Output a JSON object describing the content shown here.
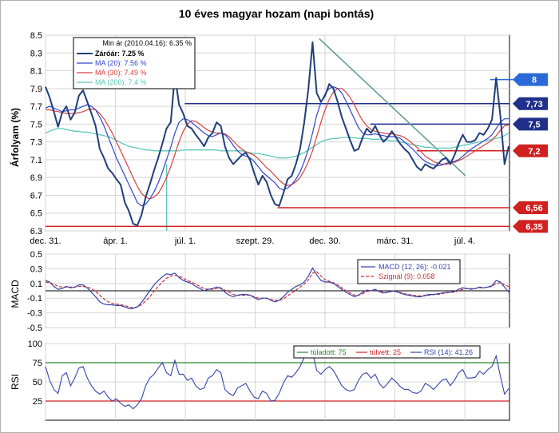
{
  "chart_data": [
    {
      "type": "line",
      "title": "10 éves magyar hozam (napi bontás)",
      "ylabel": "Árfolyam (%)",
      "ylim": [
        6.3,
        8.5
      ],
      "yticks": [
        "8.5",
        "8.3",
        "8.1",
        "7.9",
        "7.7",
        "7.5",
        "7.3",
        "7.1",
        "6.9",
        "6.7",
        "6.5",
        "6.3"
      ],
      "xticks": [
        "dec. 31.",
        "ápr. 1.",
        "júl. 1.",
        "szept. 29.",
        "dec. 30.",
        "márc. 31.",
        "júl. 4."
      ],
      "grid": true,
      "legend": {
        "position": "top-left",
        "header": "Min ár (2010.04.16): 6.35 %",
        "entries": [
          "Záróár: 7.25 %",
          "MA (20): 7.56 %",
          "MA (30): 7.49 %",
          "MA (200): 7.4 %"
        ]
      },
      "colors": {
        "close": "#1f3f7a",
        "ma20": "#3344cc",
        "ma30": "#d84040",
        "ma200": "#5cc8b8",
        "level_blue": "#1f2f8a",
        "level_red": "#d02020",
        "trend": "#5a9a90"
      },
      "series": [
        {
          "name": "Záróár",
          "values": [
            7.92,
            7.8,
            7.64,
            7.47,
            7.63,
            7.7,
            7.55,
            7.63,
            7.82,
            7.88,
            7.75,
            7.62,
            7.48,
            7.22,
            7.12,
            7.0,
            6.95,
            6.88,
            6.82,
            6.62,
            6.52,
            6.38,
            6.36,
            6.48,
            6.68,
            6.82,
            6.98,
            7.12,
            7.28,
            7.45,
            7.52,
            8.05,
            7.72,
            7.62,
            7.48,
            7.45,
            7.38,
            7.32,
            7.25,
            7.35,
            7.4,
            7.52,
            7.48,
            7.25,
            7.12,
            7.05,
            7.1,
            7.15,
            7.18,
            7.1,
            6.95,
            6.82,
            6.92,
            6.85,
            6.7,
            6.6,
            6.58,
            6.72,
            6.88,
            6.92,
            7.05,
            7.22,
            7.52,
            7.9,
            8.42,
            7.85,
            7.75,
            7.82,
            7.95,
            7.9,
            7.75,
            7.58,
            7.45,
            7.32,
            7.2,
            7.22,
            7.35,
            7.45,
            7.4,
            7.48,
            7.38,
            7.3,
            7.35,
            7.42,
            7.35,
            7.28,
            7.22,
            7.18,
            7.1,
            7.02,
            6.98,
            7.05,
            7.02,
            7.0,
            7.05,
            7.1,
            7.12,
            7.05,
            7.15,
            7.28,
            7.38,
            7.3,
            7.3,
            7.32,
            7.4,
            7.38,
            7.45,
            7.55,
            8.02,
            7.6,
            7.05,
            7.25
          ]
        },
        {
          "name": "MA (20)",
          "values": [
            7.68,
            7.7,
            7.68,
            7.66,
            7.64,
            7.65,
            7.66,
            7.66,
            7.68,
            7.7,
            7.72,
            7.7,
            7.66,
            7.58,
            7.48,
            7.36,
            7.24,
            7.12,
            7.02,
            6.92,
            6.82,
            6.72,
            6.62,
            6.58,
            6.6,
            6.66,
            6.74,
            6.84,
            6.96,
            7.1,
            7.24,
            7.4,
            7.52,
            7.56,
            7.55,
            7.52,
            7.48,
            7.44,
            7.4,
            7.37,
            7.36,
            7.38,
            7.4,
            7.38,
            7.33,
            7.26,
            7.2,
            7.16,
            7.14,
            7.12,
            7.08,
            7.02,
            6.96,
            6.92,
            6.88,
            6.84,
            6.78,
            6.76,
            6.78,
            6.82,
            6.88,
            6.96,
            7.08,
            7.22,
            7.4,
            7.6,
            7.74,
            7.84,
            7.9,
            7.92,
            7.9,
            7.85,
            7.76,
            7.66,
            7.56,
            7.46,
            7.4,
            7.38,
            7.38,
            7.39,
            7.38,
            7.37,
            7.36,
            7.36,
            7.36,
            7.34,
            7.3,
            7.26,
            7.22,
            7.17,
            7.12,
            7.08,
            7.06,
            7.04,
            7.03,
            7.04,
            7.06,
            7.07,
            7.08,
            7.1,
            7.14,
            7.18,
            7.22,
            7.25,
            7.28,
            7.31,
            7.34,
            7.38,
            7.45,
            7.52,
            7.56,
            7.56
          ]
        },
        {
          "name": "MA (30)",
          "values": [
            7.66,
            7.66,
            7.65,
            7.64,
            7.63,
            7.62,
            7.62,
            7.62,
            7.63,
            7.64,
            7.66,
            7.67,
            7.66,
            7.62,
            7.56,
            7.48,
            7.4,
            7.3,
            7.2,
            7.1,
            7.0,
            6.9,
            6.8,
            6.72,
            6.68,
            6.66,
            6.68,
            6.72,
            6.8,
            6.9,
            7.02,
            7.16,
            7.3,
            7.42,
            7.5,
            7.54,
            7.53,
            7.5,
            7.46,
            7.43,
            7.41,
            7.4,
            7.4,
            7.39,
            7.36,
            7.31,
            7.26,
            7.22,
            7.19,
            7.17,
            7.15,
            7.11,
            7.06,
            7.01,
            6.97,
            6.92,
            6.87,
            6.83,
            6.81,
            6.82,
            6.85,
            6.9,
            6.98,
            7.08,
            7.2,
            7.36,
            7.52,
            7.66,
            7.78,
            7.86,
            7.9,
            7.9,
            7.86,
            7.8,
            7.72,
            7.62,
            7.54,
            7.48,
            7.44,
            7.42,
            7.41,
            7.4,
            7.39,
            7.39,
            7.38,
            7.37,
            7.35,
            7.32,
            7.28,
            7.24,
            7.19,
            7.14,
            7.11,
            7.08,
            7.06,
            7.05,
            7.05,
            7.06,
            7.07,
            7.09,
            7.11,
            7.14,
            7.17,
            7.2,
            7.23,
            7.26,
            7.29,
            7.32,
            7.37,
            7.43,
            7.48,
            7.49
          ]
        },
        {
          "name": "MA (200)",
          "values": [
            7.4,
            7.42,
            7.44,
            7.45,
            7.45,
            7.44,
            7.43,
            7.42,
            7.42,
            7.41,
            7.41,
            7.4,
            7.39,
            7.38,
            7.37,
            7.36,
            7.34,
            7.32,
            7.29,
            7.27,
            7.25,
            7.24,
            7.23,
            7.22,
            7.21,
            7.21,
            7.2,
            7.2,
            7.2,
            7.2,
            7.2,
            7.2,
            7.2,
            7.21,
            7.21,
            7.21,
            7.21,
            7.21,
            7.21,
            7.21,
            7.21,
            7.21,
            7.2,
            7.2,
            7.2,
            7.2,
            7.2,
            7.2,
            7.19,
            7.18,
            7.17,
            7.17,
            7.16,
            7.15,
            7.14,
            7.13,
            7.12,
            7.12,
            7.12,
            7.13,
            7.14,
            7.16,
            7.18,
            7.21,
            7.24,
            7.27,
            7.3,
            7.32,
            7.33,
            7.34,
            7.34,
            7.35,
            7.35,
            7.35,
            7.35,
            7.34,
            7.34,
            7.34,
            7.33,
            7.33,
            7.33,
            7.32,
            7.32,
            7.31,
            7.31,
            7.3,
            7.29,
            7.28,
            7.27,
            7.26,
            7.25,
            7.24,
            7.24,
            7.23,
            7.23,
            7.23,
            7.23,
            7.23,
            7.24,
            7.25,
            7.26,
            7.27,
            7.28,
            7.29,
            7.3,
            7.31,
            7.32,
            7.33,
            7.34,
            7.35,
            7.37,
            7.4
          ]
        }
      ],
      "levels": [
        {
          "value": 7.73,
          "label": "7,73",
          "color": "#1f2f8a",
          "from_fraction": 0.3
        },
        {
          "value": 7.5,
          "label": "7,5",
          "color": "#1f2f8a",
          "from_fraction": 0.7
        },
        {
          "value": 7.2,
          "label": "7,2",
          "color": "#d02020",
          "from_fraction": 0.8
        },
        {
          "value": 6.56,
          "label": "6,56",
          "color": "#d02020",
          "from_fraction": 0.5
        },
        {
          "value": 6.35,
          "label": "6,35",
          "color": "#d02020",
          "from_fraction": 0.0
        }
      ],
      "marker": {
        "value": 8.0,
        "label": "8",
        "color": "#2a6ad8",
        "at_fraction": 0.965
      },
      "trendline": {
        "from": [
          0.59,
          8.46
        ],
        "to": [
          0.905,
          6.92
        ]
      },
      "annotation_line": {
        "x_fraction": 0.261
      }
    },
    {
      "type": "line",
      "ylabel": "MACD",
      "ylim": [
        -0.5,
        0.5
      ],
      "yticks": [
        "0.5",
        "0.3",
        "0.1",
        "-0.1",
        "-0.3",
        "-0.5"
      ],
      "grid": true,
      "legend": {
        "position": "top-right",
        "entries": [
          "MACD (12, 26): -0.021",
          "Szignál (9): 0.058"
        ]
      },
      "colors": {
        "macd": "#3344aa",
        "signal": "#d03030",
        "zero": "#000000"
      },
      "series": [
        {
          "name": "MACD (12, 26)",
          "values": [
            0.14,
            0.12,
            0.06,
            0.02,
            0.03,
            0.06,
            0.04,
            0.05,
            0.08,
            0.08,
            0.04,
            -0.02,
            -0.08,
            -0.15,
            -0.18,
            -0.19,
            -0.19,
            -0.2,
            -0.2,
            -0.22,
            -0.24,
            -0.24,
            -0.22,
            -0.16,
            -0.08,
            0.0,
            0.08,
            0.14,
            0.19,
            0.23,
            0.22,
            0.24,
            0.18,
            0.14,
            0.12,
            0.1,
            0.06,
            0.03,
            0.0,
            0.02,
            0.03,
            0.05,
            0.04,
            -0.02,
            -0.06,
            -0.08,
            -0.06,
            -0.05,
            -0.05,
            -0.06,
            -0.09,
            -0.12,
            -0.1,
            -0.1,
            -0.13,
            -0.15,
            -0.13,
            -0.08,
            -0.02,
            0.02,
            0.06,
            0.08,
            0.12,
            0.2,
            0.31,
            0.22,
            0.14,
            0.12,
            0.12,
            0.1,
            0.06,
            0.02,
            -0.02,
            -0.05,
            -0.08,
            -0.06,
            -0.02,
            0.01,
            0.0,
            0.02,
            -0.01,
            -0.03,
            -0.02,
            0.0,
            -0.01,
            -0.03,
            -0.05,
            -0.06,
            -0.07,
            -0.08,
            -0.08,
            -0.06,
            -0.05,
            -0.05,
            -0.04,
            -0.03,
            -0.02,
            -0.02,
            -0.01,
            0.02,
            0.04,
            0.03,
            0.02,
            0.03,
            0.05,
            0.04,
            0.05,
            0.07,
            0.14,
            0.12,
            0.05,
            -0.02
          ]
        },
        {
          "name": "Szignál (9)",
          "values": [
            0.12,
            0.11,
            0.09,
            0.06,
            0.05,
            0.05,
            0.05,
            0.05,
            0.06,
            0.06,
            0.05,
            0.03,
            -0.01,
            -0.06,
            -0.11,
            -0.15,
            -0.17,
            -0.18,
            -0.19,
            -0.2,
            -0.22,
            -0.23,
            -0.22,
            -0.19,
            -0.14,
            -0.08,
            -0.01,
            0.06,
            0.12,
            0.17,
            0.2,
            0.21,
            0.2,
            0.17,
            0.14,
            0.12,
            0.09,
            0.06,
            0.03,
            0.02,
            0.02,
            0.03,
            0.03,
            0.01,
            -0.02,
            -0.05,
            -0.06,
            -0.06,
            -0.06,
            -0.06,
            -0.08,
            -0.1,
            -0.1,
            -0.1,
            -0.12,
            -0.13,
            -0.13,
            -0.11,
            -0.07,
            -0.03,
            0.01,
            0.05,
            0.09,
            0.15,
            0.24,
            0.26,
            0.2,
            0.15,
            0.13,
            0.11,
            0.08,
            0.04,
            0.0,
            -0.03,
            -0.06,
            -0.06,
            -0.04,
            -0.01,
            0.0,
            0.01,
            0.0,
            -0.02,
            -0.02,
            -0.01,
            -0.01,
            -0.02,
            -0.04,
            -0.05,
            -0.06,
            -0.07,
            -0.07,
            -0.07,
            -0.06,
            -0.05,
            -0.05,
            -0.04,
            -0.03,
            -0.02,
            -0.02,
            0.0,
            0.02,
            0.03,
            0.03,
            0.03,
            0.04,
            0.04,
            0.05,
            0.06,
            0.1,
            0.11,
            0.08,
            0.058
          ]
        }
      ]
    },
    {
      "type": "line",
      "ylabel": "RSI",
      "ylim": [
        0,
        100
      ],
      "yticks": [
        "100",
        "75",
        "50",
        "25"
      ],
      "grid": true,
      "legend": {
        "position": "top-right",
        "entries": [
          "túladott: 75",
          "túlvett: 25",
          "RSI (14): 41.26"
        ]
      },
      "colors": {
        "rsi": "#3344aa",
        "overbought": "#2a8a2a",
        "oversold": "#d02020"
      },
      "levels": [
        75,
        25
      ],
      "series": [
        {
          "name": "RSI (14)",
          "values": [
            70,
            52,
            40,
            35,
            58,
            62,
            45,
            55,
            68,
            70,
            55,
            45,
            38,
            34,
            38,
            30,
            25,
            28,
            22,
            18,
            20,
            15,
            20,
            28,
            45,
            55,
            60,
            68,
            75,
            62,
            58,
            78,
            60,
            60,
            52,
            55,
            45,
            40,
            42,
            55,
            58,
            66,
            62,
            40,
            35,
            32,
            42,
            45,
            48,
            38,
            30,
            28,
            38,
            35,
            25,
            26,
            35,
            48,
            58,
            56,
            62,
            70,
            82,
            92,
            88,
            65,
            60,
            66,
            70,
            65,
            55,
            45,
            40,
            38,
            40,
            52,
            60,
            62,
            55,
            60,
            48,
            42,
            48,
            55,
            50,
            44,
            40,
            40,
            36,
            35,
            38,
            48,
            45,
            40,
            46,
            52,
            54,
            45,
            52,
            62,
            66,
            55,
            55,
            56,
            64,
            60,
            66,
            70,
            84,
            58,
            34,
            41.26
          ]
        }
      ]
    }
  ]
}
